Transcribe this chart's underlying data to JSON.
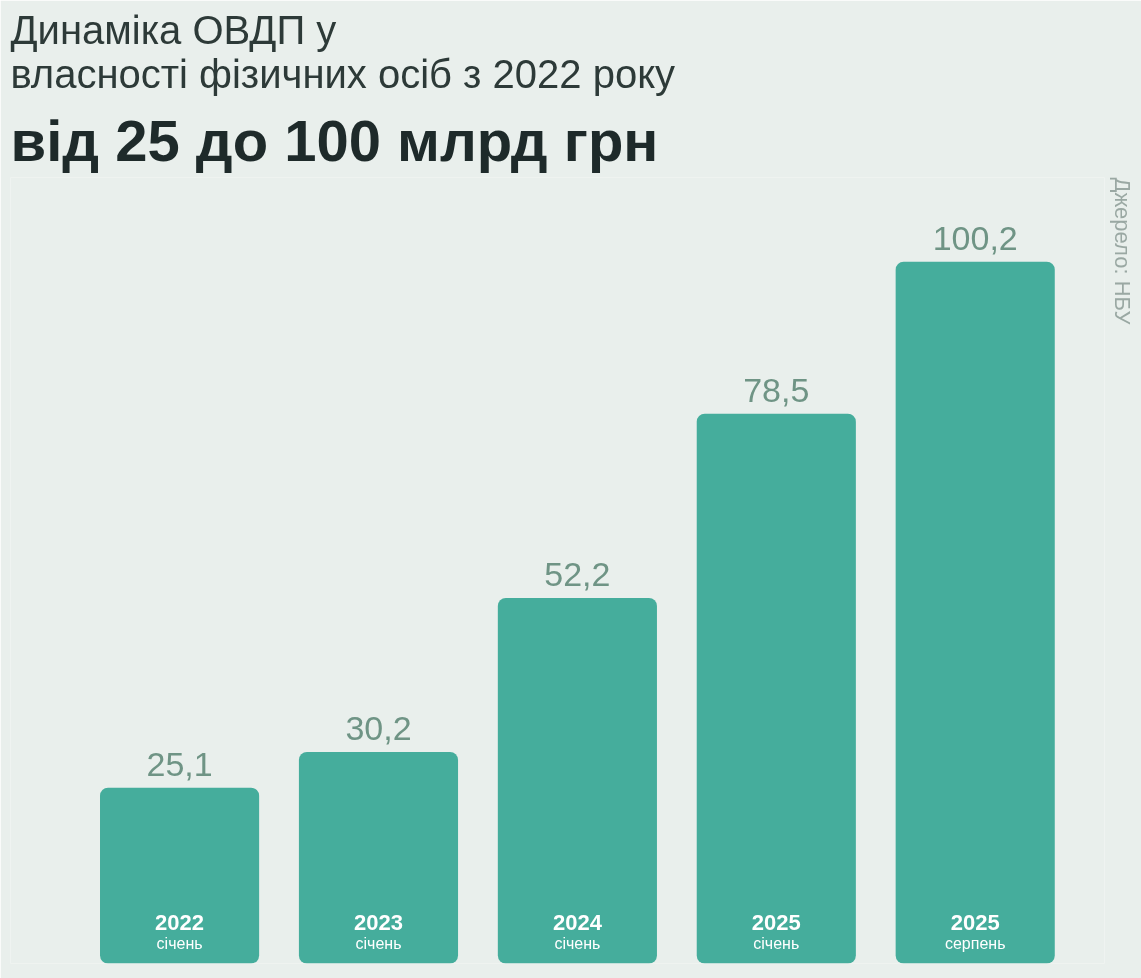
{
  "chart_data": {
    "type": "bar",
    "title": "Динаміка ОВДП у власності фізичних осіб з 2022 року",
    "subtitle": "від 25 до 100 млрд грн",
    "categories": [
      "2022 січень",
      "2023 січень",
      "2024 січень",
      "2025 січень",
      "2025 серпень"
    ],
    "values": [
      25.1,
      30.2,
      52.2,
      78.5,
      100.2
    ],
    "color": "#45ad9c",
    "value_labels": [
      "25,1",
      "30,2",
      "52,2",
      "78,5",
      "100,2"
    ],
    "grid": false,
    "annotations": [
      "Джерело: НБУ"
    ]
  }
}
